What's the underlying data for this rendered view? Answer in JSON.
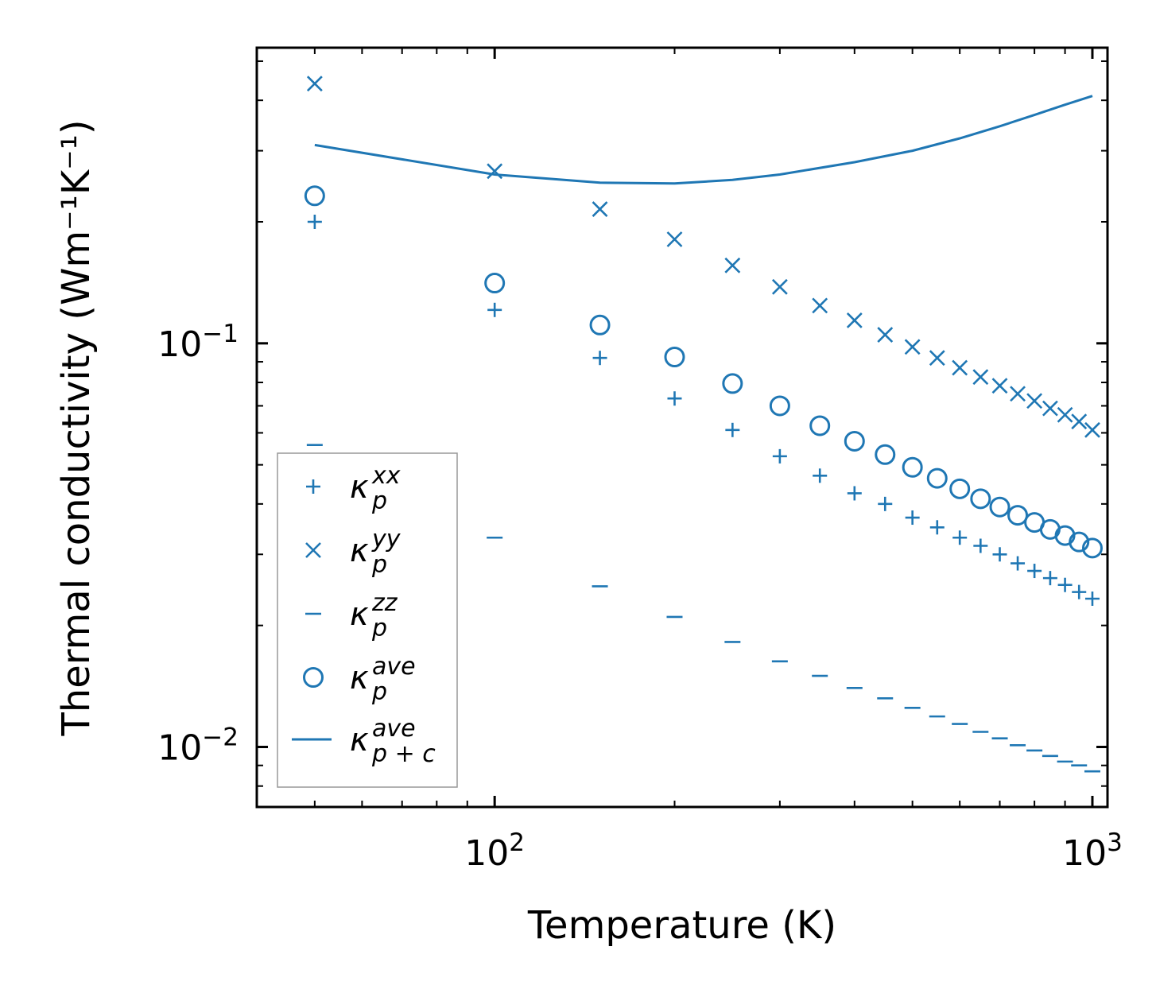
{
  "chart_data": {
    "type": "scatter",
    "xscale": "log",
    "yscale": "log",
    "xlabel": "Temperature (K)",
    "ylabel": "Thermal conductivity (Wm⁻¹K⁻¹)",
    "xlim": [
      40,
      1060
    ],
    "ylim": [
      0.0071,
      0.54
    ],
    "xticks": [
      {
        "base": "10",
        "exp": "2"
      },
      {
        "base": "10",
        "exp": "3"
      }
    ],
    "yticks": [
      {
        "base": "10",
        "exp": "−1"
      },
      {
        "base": "10",
        "exp": "−2"
      }
    ],
    "color": "#1f77b4",
    "x": [
      50,
      100,
      150,
      200,
      250,
      300,
      350,
      400,
      450,
      500,
      550,
      600,
      650,
      700,
      750,
      800,
      850,
      900,
      950,
      1000
    ],
    "series": [
      {
        "name": "κ_p^xx",
        "base": "κ",
        "sub": "p",
        "sup": "xx",
        "marker": "plus",
        "values": [
          0.2,
          0.121,
          0.092,
          0.073,
          0.061,
          0.0525,
          0.047,
          0.0425,
          0.04,
          0.037,
          0.035,
          0.033,
          0.0315,
          0.03,
          0.0285,
          0.0273,
          0.0262,
          0.0252,
          0.0242,
          0.0233
        ]
      },
      {
        "name": "κ_p^yy",
        "base": "κ",
        "sub": "p",
        "sup": "yy",
        "marker": "x",
        "values": [
          0.44,
          0.267,
          0.215,
          0.181,
          0.156,
          0.138,
          0.124,
          0.114,
          0.105,
          0.098,
          0.092,
          0.087,
          0.0825,
          0.0785,
          0.075,
          0.072,
          0.069,
          0.0665,
          0.064,
          0.061
        ]
      },
      {
        "name": "κ_p^zz",
        "base": "κ",
        "sub": "p",
        "sup": "zz",
        "marker": "hline",
        "values": [
          0.056,
          0.033,
          0.025,
          0.021,
          0.0182,
          0.0163,
          0.015,
          0.014,
          0.0132,
          0.0125,
          0.0119,
          0.0114,
          0.0109,
          0.0105,
          0.0101,
          0.0098,
          0.0095,
          0.0092,
          0.009,
          0.0087
        ]
      },
      {
        "name": "κ_p^ave",
        "base": "κ",
        "sub": "p",
        "sup": "ave",
        "marker": "circle",
        "values": [
          0.232,
          0.141,
          0.111,
          0.0925,
          0.0795,
          0.07,
          0.0625,
          0.0572,
          0.053,
          0.0493,
          0.0463,
          0.0436,
          0.0412,
          0.0393,
          0.0375,
          0.036,
          0.0346,
          0.0334,
          0.0322,
          0.0311
        ]
      },
      {
        "name": "κ_p+c^ave",
        "base": "κ",
        "sub": "p + c",
        "sup": "ave",
        "marker": "line",
        "x": [
          50,
          100,
          150,
          200,
          250,
          300,
          400,
          500,
          600,
          700,
          800,
          900,
          1000
        ],
        "values": [
          0.31,
          0.262,
          0.25,
          0.249,
          0.254,
          0.262,
          0.281,
          0.3,
          0.322,
          0.345,
          0.368,
          0.39,
          0.41
        ]
      }
    ],
    "legend": "lower-left"
  }
}
